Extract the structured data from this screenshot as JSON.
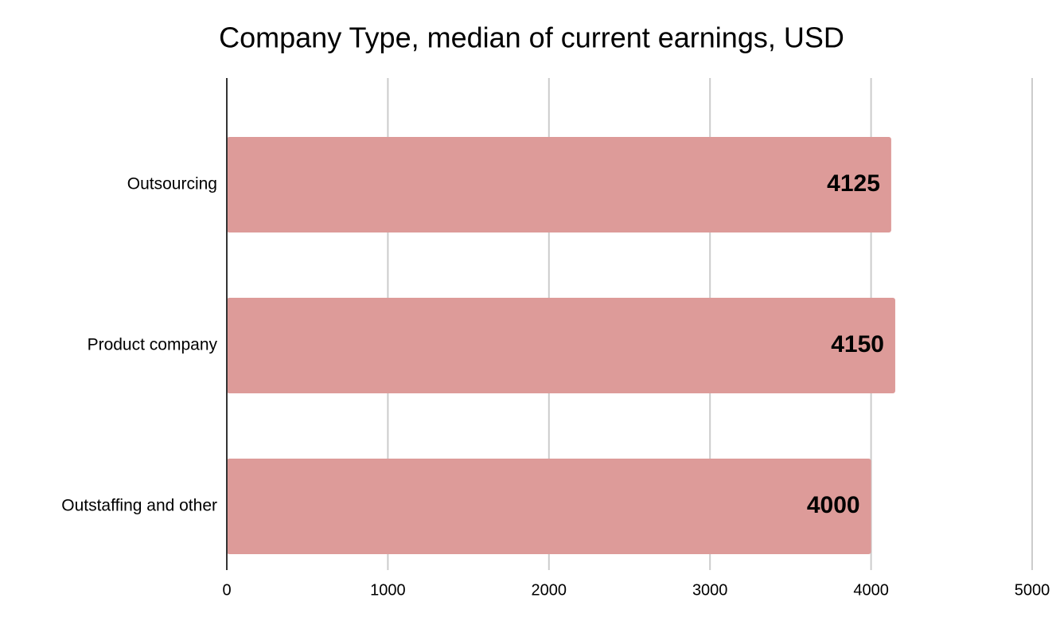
{
  "chart_data": {
    "type": "bar",
    "orientation": "horizontal",
    "title": "Company Type, median of current earnings, USD",
    "categories": [
      "Outsourcing",
      "Product company",
      "Outstaffing and other"
    ],
    "values": [
      4125,
      4150,
      4000
    ],
    "color": "#dd9b99",
    "xlim": [
      0,
      5000
    ],
    "xticks": [
      0,
      1000,
      2000,
      3000,
      4000,
      5000
    ],
    "grid": true,
    "data_labels": true
  }
}
